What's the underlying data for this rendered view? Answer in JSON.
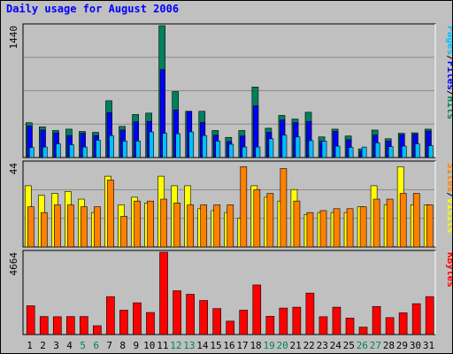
{
  "window_title": "Daily usage for August 2006",
  "colors": {
    "hits": "#00805c",
    "files": "#0000ff",
    "pages": "#00c0ff",
    "visits": "#ffff00",
    "sites": "#ff8000",
    "kbytes": "#ff0000",
    "weekend_label": "#00805c",
    "weekday_label": "#000000",
    "title": "#0000ff",
    "panel_bg": "#c0c0c0"
  },
  "chart_data": [
    {
      "type": "bar",
      "panel": "top",
      "ymax_label": "1440",
      "ylim": [
        0,
        1440
      ],
      "legend": [
        {
          "text": "Pages",
          "color": "#00c0ff"
        },
        {
          "text": "/",
          "color": "#000000"
        },
        {
          "text": "Files",
          "color": "#0000ff"
        },
        {
          "text": "/",
          "color": "#000000"
        },
        {
          "text": "Hits",
          "color": "#00805c"
        }
      ],
      "categories": [
        "1",
        "2",
        "3",
        "4",
        "5",
        "6",
        "7",
        "8",
        "9",
        "10",
        "11",
        "12",
        "13",
        "14",
        "15",
        "16",
        "17",
        "18",
        "19",
        "20",
        "21",
        "22",
        "23",
        "24",
        "25",
        "26",
        "27",
        "28",
        "29",
        "30",
        "31"
      ],
      "weekend_days": [
        "5",
        "6",
        "12",
        "13",
        "19",
        "20",
        "26",
        "27"
      ],
      "series": [
        {
          "name": "Hits",
          "values": [
            380,
            335,
            295,
            310,
            285,
            275,
            620,
            340,
            470,
            485,
            1440,
            720,
            505,
            505,
            295,
            220,
            295,
            770,
            320,
            460,
            420,
            495,
            225,
            310,
            235,
            95,
            300,
            205,
            265,
            270,
            310
          ]
        },
        {
          "name": "Files",
          "values": [
            345,
            300,
            270,
            240,
            265,
            240,
            490,
            300,
            390,
            395,
            960,
            520,
            505,
            385,
            245,
            175,
            235,
            565,
            275,
            410,
            380,
            395,
            180,
            285,
            195,
            70,
            245,
            180,
            250,
            255,
            290
          ]
        },
        {
          "name": "Pages",
          "values": [
            110,
            115,
            150,
            140,
            115,
            190,
            240,
            180,
            180,
            280,
            265,
            260,
            280,
            240,
            180,
            145,
            115,
            115,
            205,
            245,
            225,
            185,
            180,
            125,
            110,
            115,
            160,
            120,
            125,
            150,
            130
          ]
        }
      ]
    },
    {
      "type": "bar",
      "panel": "middle",
      "ymax_label": "44",
      "ylim": [
        0,
        44
      ],
      "legend": [
        {
          "text": "Sites",
          "color": "#ff8000"
        },
        {
          "text": "/",
          "color": "#000000"
        },
        {
          "text": "Visits",
          "color": "#ffff00"
        }
      ],
      "categories": [
        "1",
        "2",
        "3",
        "4",
        "5",
        "6",
        "7",
        "8",
        "9",
        "10",
        "11",
        "12",
        "13",
        "14",
        "15",
        "16",
        "17",
        "18",
        "19",
        "20",
        "21",
        "22",
        "23",
        "24",
        "25",
        "26",
        "27",
        "28",
        "29",
        "30",
        "31"
      ],
      "series": [
        {
          "name": "Visits",
          "values": [
            32,
            27,
            28,
            29,
            25,
            18,
            37,
            22,
            26,
            23,
            37,
            32,
            32,
            20,
            19,
            18,
            15,
            32,
            26,
            24,
            30,
            17,
            18,
            18,
            18,
            21,
            32,
            22,
            42,
            22,
            22
          ]
        },
        {
          "name": "Sites",
          "values": [
            21,
            18,
            22,
            22,
            21,
            21,
            35,
            16,
            24,
            24,
            25,
            23,
            22,
            22,
            22,
            22,
            42,
            30,
            28,
            41,
            24,
            18,
            19,
            20,
            20,
            21,
            25,
            25,
            28,
            28,
            22
          ]
        }
      ]
    },
    {
      "type": "bar",
      "panel": "bottom",
      "ymax_label": "4664",
      "ylim": [
        0,
        4664
      ],
      "legend": [
        {
          "text": "KBytes",
          "color": "#ff0000"
        }
      ],
      "categories": [
        "1",
        "2",
        "3",
        "4",
        "5",
        "6",
        "7",
        "8",
        "9",
        "10",
        "11",
        "12",
        "13",
        "14",
        "15",
        "16",
        "17",
        "18",
        "19",
        "20",
        "21",
        "22",
        "23",
        "24",
        "25",
        "26",
        "27",
        "28",
        "29",
        "30",
        "31"
      ],
      "series": [
        {
          "name": "KBytes",
          "values": [
            1630,
            1020,
            1010,
            1020,
            1020,
            500,
            2150,
            1380,
            1800,
            1250,
            4664,
            2480,
            2280,
            1930,
            1470,
            760,
            1380,
            2810,
            1030,
            1500,
            1550,
            2350,
            1010,
            1550,
            930,
            420,
            1590,
            960,
            1230,
            1750,
            2150
          ]
        }
      ]
    }
  ]
}
